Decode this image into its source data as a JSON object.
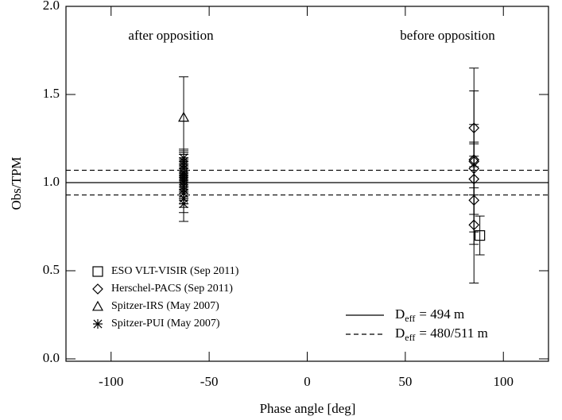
{
  "chart_data": {
    "type": "scatter",
    "xlabel": "Phase angle [deg]",
    "ylabel": "Obs/TPM",
    "xlim": [
      -123,
      123
    ],
    "ylim": [
      0,
      2
    ],
    "xticks": [
      -100,
      -50,
      0,
      50,
      100
    ],
    "yticks": [
      {
        "value": 0,
        "label": "0.0"
      },
      0.5,
      {
        "value": 1,
        "label": "1.0"
      },
      1.5,
      {
        "value": 2,
        "label": "2.0"
      }
    ],
    "annotations": [
      "after opposition",
      "before opposition"
    ],
    "series": [
      {
        "name": "ESO VLT-VISIR (Sep 2011)",
        "marker": "square",
        "color": "#000000",
        "x": [
          88
        ],
        "values": [
          0.7
        ],
        "errors": [
          0.11
        ]
      },
      {
        "name": "Herschel-PACS (Sep 2011)",
        "marker": "diamond",
        "color": "#000000",
        "x": [
          85,
          85,
          85,
          85,
          85,
          85,
          85
        ],
        "values": [
          1.31,
          1.13,
          1.12,
          1.08,
          1.02,
          0.9,
          0.76
        ],
        "errors": [
          0.34,
          0.2,
          0.4,
          0.15,
          0.2,
          0.25,
          0.33
        ]
      },
      {
        "name": "Spitzer-IRS (May 2007)",
        "marker": "triangle",
        "color": "#000000",
        "x": [
          -63
        ],
        "values": [
          1.37
        ],
        "errors": [
          0.23
        ]
      },
      {
        "name": "Spitzer-PUI (May 2007)",
        "marker": "asterisk",
        "color": "#000000",
        "x": [
          -63,
          -63,
          -63,
          -63,
          -63,
          -63,
          -63,
          -63,
          -63,
          -63,
          -63,
          -63,
          -63,
          -63,
          -63,
          -63
        ],
        "values": [
          0.88,
          0.91,
          0.94,
          0.96,
          0.98,
          1.0,
          1.01,
          1.02,
          1.03,
          1.04,
          1.05,
          1.06,
          1.08,
          1.1,
          1.12,
          1.14
        ],
        "errors": [
          0.1,
          0.08,
          0.08,
          0.08,
          0.08,
          0.08,
          0.08,
          0.08,
          0.08,
          0.08,
          0.08,
          0.08,
          0.08,
          0.07,
          0.06,
          0.05
        ]
      }
    ],
    "reference_lines": [
      {
        "label": [
          "D",
          "eff",
          "= 494 m"
        ],
        "value": 1.0,
        "dash": false
      },
      {
        "label": [
          "D",
          "eff",
          "= 480/511 m"
        ],
        "value": 1.07,
        "dash": true
      },
      {
        "value": 0.93,
        "dash": true
      }
    ]
  }
}
